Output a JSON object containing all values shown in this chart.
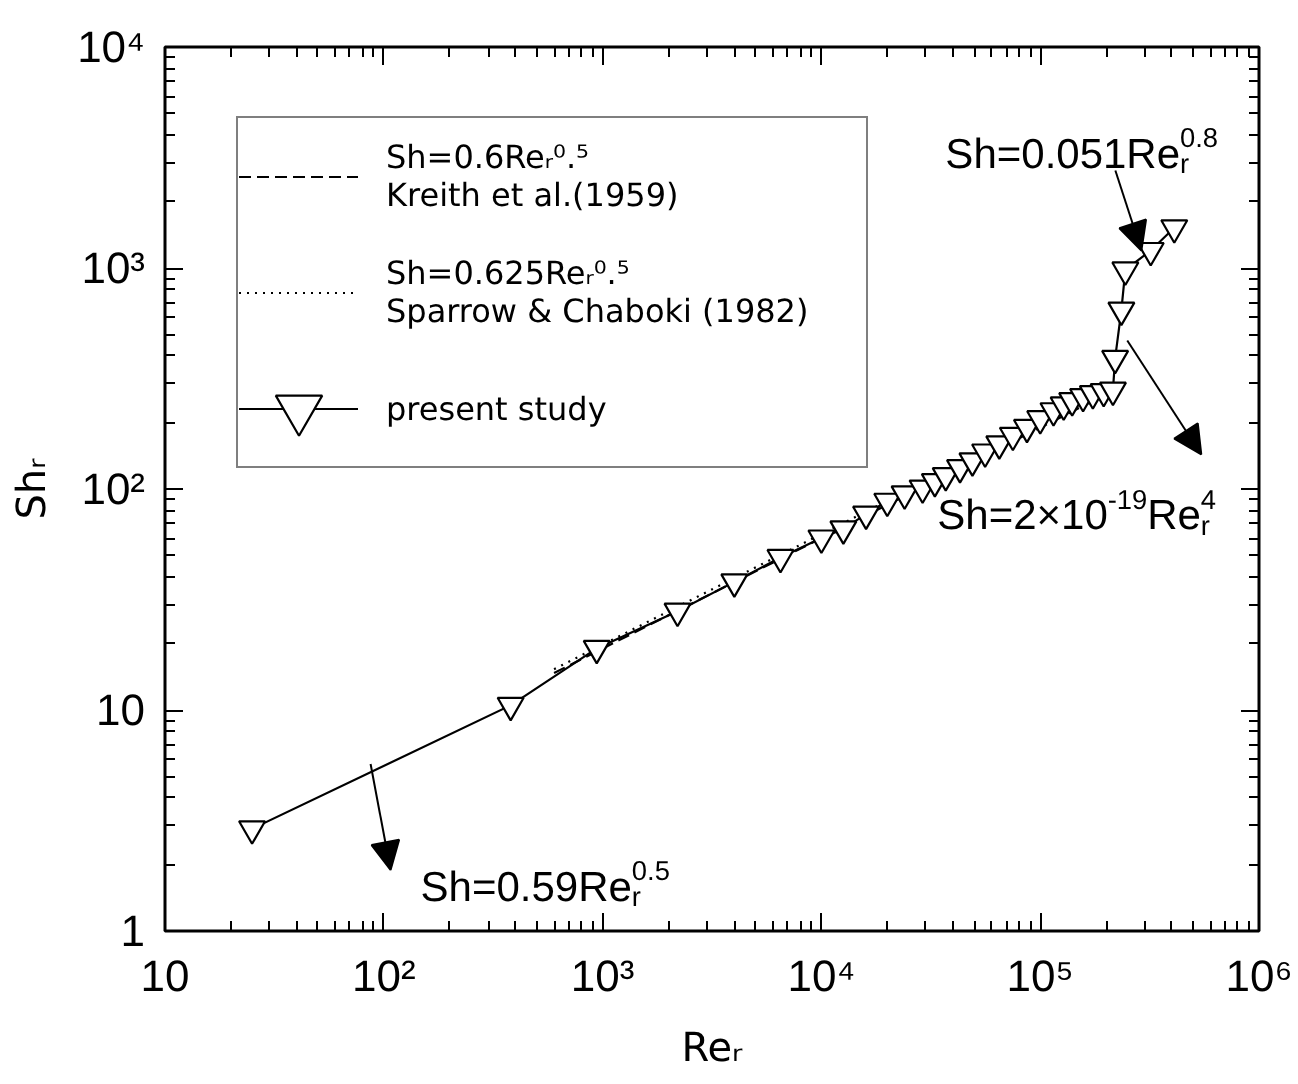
{
  "chart_data": {
    "type": "line",
    "xlabel": "Reᵣ",
    "ylabel": "Shᵣ",
    "log": "xy",
    "xlim": [
      10,
      1000000
    ],
    "ylim": [
      1,
      10000
    ],
    "xticks": [
      10,
      {
        "value": 100,
        "label": "10²"
      },
      {
        "value": 1000,
        "label": "10³"
      },
      {
        "value": 10000,
        "label": "10⁴"
      },
      {
        "value": 100000,
        "label": "10⁵"
      },
      {
        "value": 1000000,
        "label": "10⁶"
      }
    ],
    "yticks": [
      1,
      10,
      {
        "value": 100,
        "label": "10²"
      },
      {
        "value": 1000,
        "label": "10³"
      },
      {
        "value": 10000,
        "label": "10⁴"
      }
    ],
    "grid": false,
    "legend": "top left",
    "series": [
      {
        "name": "Sh=0.6Reᵣ⁰.⁵\nKreith et al.(1959)",
        "color": "#000000",
        "line_style": "dashed",
        "marker": "none",
        "x": [
          600,
          200000
        ],
        "values": [
          14.7,
          268
        ]
      },
      {
        "name": "Sh=0.625Reᵣ⁰.⁵\nSparrow & Chaboki (1982)",
        "color": "#000000",
        "line_style": "dotted",
        "marker": "none",
        "x": [
          600,
          200000
        ],
        "values": [
          15.3,
          279.5
        ]
      },
      {
        "name": "present study",
        "color": "#000000",
        "line_style": "solid",
        "marker": "triangle",
        "x": [
          25,
          380,
          940,
          2200,
          4000,
          6500,
          10000,
          12600,
          16000,
          20000,
          24000,
          29000,
          33000,
          37000,
          43000,
          49000,
          56000,
          65000,
          75000,
          87000,
          100000,
          115000,
          128000,
          140000,
          157000,
          174000,
          195000,
          215000,
          220000,
          235000,
          245000,
          320000,
          410000
        ],
        "values": [
          2.9,
          10.5,
          19,
          28,
          38,
          49,
          60,
          66,
          77,
          88,
          95,
          101,
          108,
          115,
          125,
          134,
          147,
          160,
          175,
          190,
          208,
          226,
          240,
          251,
          262,
          270,
          276,
          280,
          390,
          645,
          980,
          1200,
          1520
        ]
      }
    ],
    "annotations": [
      {
        "text": "Sh=0.051Re$_{r}$$^{0.8}$",
        "x": 290000,
        "y": 1200
      },
      {
        "text": "Sh=2×10$^{-19}$Re$_{r}$$^{4}$",
        "x": 250000,
        "y": 470
      },
      {
        "text": "Sh=0.59Re$_{r}$$^{0.5}$",
        "x": 87,
        "y": 5.7
      }
    ]
  }
}
